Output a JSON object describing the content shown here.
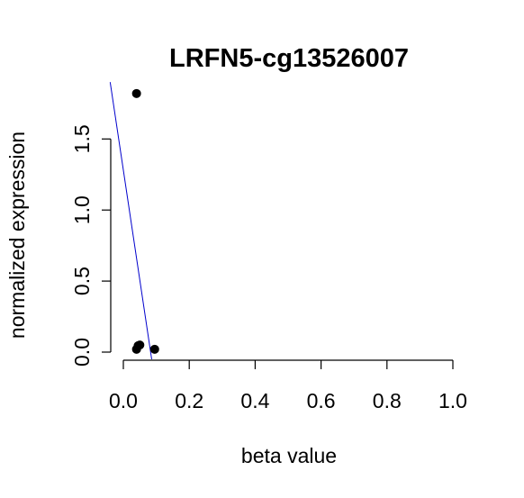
{
  "chart_data": {
    "type": "scatter",
    "title": "LRFN5-cg13526007",
    "xlabel": "beta value",
    "ylabel": "normalized expression",
    "xlim": [
      0.0,
      1.0
    ],
    "ylim": [
      0.0,
      1.8
    ],
    "x_ticks": [
      0.0,
      0.2,
      0.4,
      0.6,
      0.8,
      1.0
    ],
    "x_tick_labels": [
      "0.0",
      "0.2",
      "0.4",
      "0.6",
      "0.8",
      "1.0"
    ],
    "y_ticks": [
      0.0,
      0.5,
      1.0,
      1.5
    ],
    "y_tick_labels": [
      "0.0",
      "0.5",
      "1.0",
      "1.5"
    ],
    "grid": false,
    "points": [
      {
        "x": 0.04,
        "y": 1.82
      },
      {
        "x": 0.045,
        "y": 0.045
      },
      {
        "x": 0.05,
        "y": 0.05
      },
      {
        "x": 0.04,
        "y": 0.02
      },
      {
        "x": 0.095,
        "y": 0.02
      }
    ],
    "fit_line": {
      "x": [
        -0.04,
        0.086
      ],
      "y": [
        1.9,
        -0.05
      ],
      "color": "#0000cc"
    },
    "point_color": "#000000"
  }
}
